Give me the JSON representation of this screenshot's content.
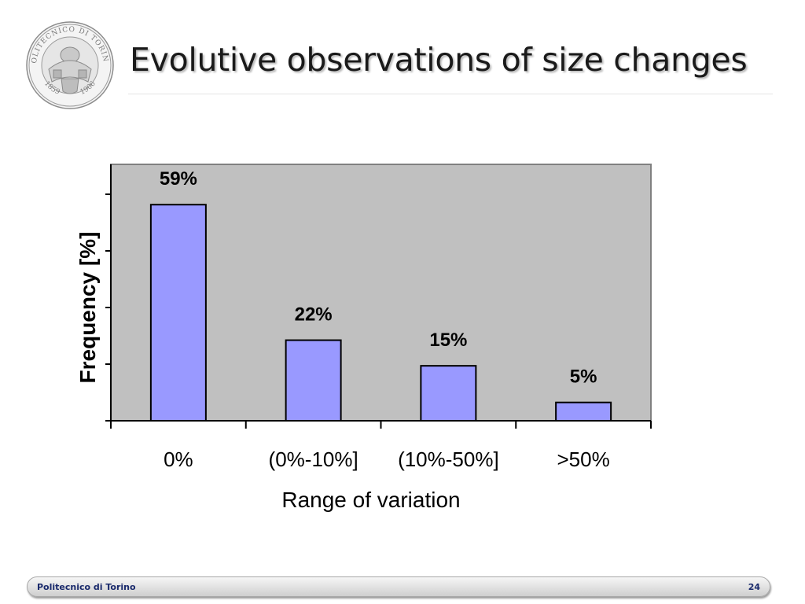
{
  "slide": {
    "title": "Evolutive observations of size changes",
    "page_number": "24"
  },
  "logo": {
    "top_text": "POLITECNICO DI TORINO",
    "year_left": "1859",
    "year_right": "1906"
  },
  "footer": {
    "org": "Politecnico di Torino"
  },
  "colors": {
    "bar_fill": "#9999ff",
    "plot_bg": "#c0c0c0",
    "footer_text": "#1a2a6c"
  },
  "chart_data": {
    "type": "bar",
    "categories": [
      "0%",
      "(0%-10%]",
      "(10%-50%]",
      ">50%"
    ],
    "values": [
      59,
      22,
      15,
      5
    ],
    "data_labels": [
      "59%",
      "22%",
      "15%",
      "5%"
    ],
    "xlabel": "Range of variation",
    "ylabel": "Frequency [%]",
    "ylim": [
      0,
      70
    ],
    "y_tick_count": 5,
    "grid": false,
    "legend": "none"
  }
}
